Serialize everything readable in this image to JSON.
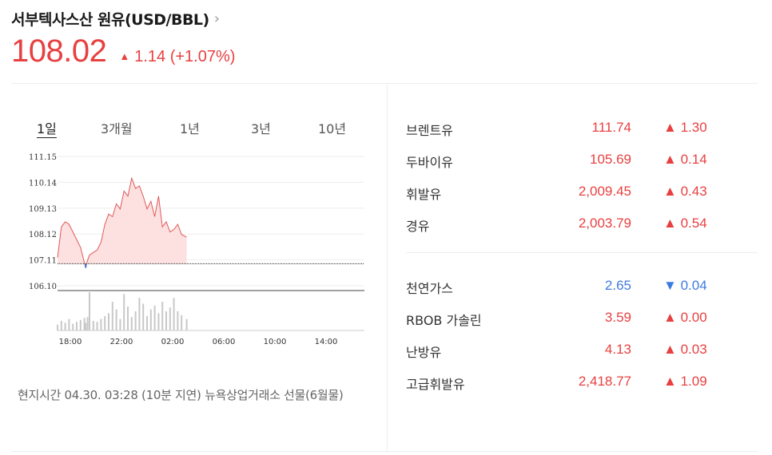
{
  "header": {
    "title": "서부텍사스산 원유(USD/BBL)",
    "chevron_icon": "chevron-right-icon",
    "price": "108.02",
    "change_arrow": "▲",
    "change": "1.14 (+1.07%)"
  },
  "tabs": [
    {
      "label": "1일",
      "active": true
    },
    {
      "label": "3개월",
      "active": false
    },
    {
      "label": "1년",
      "active": false
    },
    {
      "label": "3년",
      "active": false
    },
    {
      "label": "10년",
      "active": false
    }
  ],
  "chart_data": {
    "type": "area",
    "yticks": [
      "111.15",
      "110.14",
      "109.13",
      "108.12",
      "107.11",
      "106.10"
    ],
    "xticks": [
      "18:00",
      "22:00",
      "02:00",
      "06:00",
      "10:00",
      "14:00"
    ],
    "baseline": 106.96,
    "ylim": [
      106.1,
      111.15
    ],
    "x_hours_since_1700": [
      0,
      0.3,
      0.6,
      0.9,
      1.2,
      1.5,
      1.8,
      2.1,
      2.2,
      2.35,
      2.5,
      2.8,
      3.1,
      3.4,
      3.7,
      4.0,
      4.3,
      4.6,
      4.9,
      5.2,
      5.5,
      5.8,
      6.1,
      6.4,
      6.7,
      7.0,
      7.3,
      7.6,
      7.9,
      8.2,
      8.5,
      8.8,
      9.1,
      9.4,
      9.7,
      10.1
    ],
    "values": [
      107.2,
      108.4,
      108.6,
      108.5,
      108.2,
      107.9,
      107.6,
      107.0,
      106.8,
      107.1,
      107.3,
      107.4,
      107.5,
      107.8,
      108.5,
      108.9,
      108.8,
      109.3,
      109.1,
      109.8,
      109.6,
      110.3,
      109.9,
      110.0,
      109.6,
      109.1,
      109.4,
      108.8,
      109.6,
      108.4,
      108.6,
      108.2,
      108.3,
      108.5,
      108.1,
      108.0
    ],
    "volume": [
      6,
      10,
      8,
      12,
      7,
      9,
      11,
      13,
      8,
      14,
      40,
      10,
      9,
      12,
      15,
      18,
      30,
      22,
      12,
      38,
      25,
      14,
      20,
      34,
      28,
      15,
      22,
      26,
      18,
      30,
      20,
      24,
      34,
      20,
      16,
      12
    ]
  },
  "footer_note": "현지시간 04.30. 03:28 (10분 지연) 뉴욕상업거래소 선물(6월물)",
  "quotes_group1": [
    {
      "name": "브렌트유",
      "value": "111.74",
      "arrow": "▲",
      "change": "1.30",
      "dir": "up"
    },
    {
      "name": "두바이유",
      "value": "105.69",
      "arrow": "▲",
      "change": "0.14",
      "dir": "up"
    },
    {
      "name": "휘발유",
      "value": "2,009.45",
      "arrow": "▲",
      "change": "0.43",
      "dir": "up"
    },
    {
      "name": "경유",
      "value": "2,003.79",
      "arrow": "▲",
      "change": "0.54",
      "dir": "up"
    }
  ],
  "quotes_group2": [
    {
      "name": "천연가스",
      "value": "2.65",
      "arrow": "▼",
      "change": "0.04",
      "dir": "down"
    },
    {
      "name": "RBOB 가솔린",
      "value": "3.59",
      "arrow": "▲",
      "change": "0.00",
      "dir": "up"
    },
    {
      "name": "난방유",
      "value": "4.13",
      "arrow": "▲",
      "change": "0.03",
      "dir": "up"
    },
    {
      "name": "고급휘발유",
      "value": "2,418.77",
      "arrow": "▲",
      "change": "1.09",
      "dir": "up"
    }
  ],
  "colors": {
    "up": "#e84040",
    "down": "#3d7be0",
    "area_fill": "#fde0e0",
    "line": "#e05a5a"
  }
}
